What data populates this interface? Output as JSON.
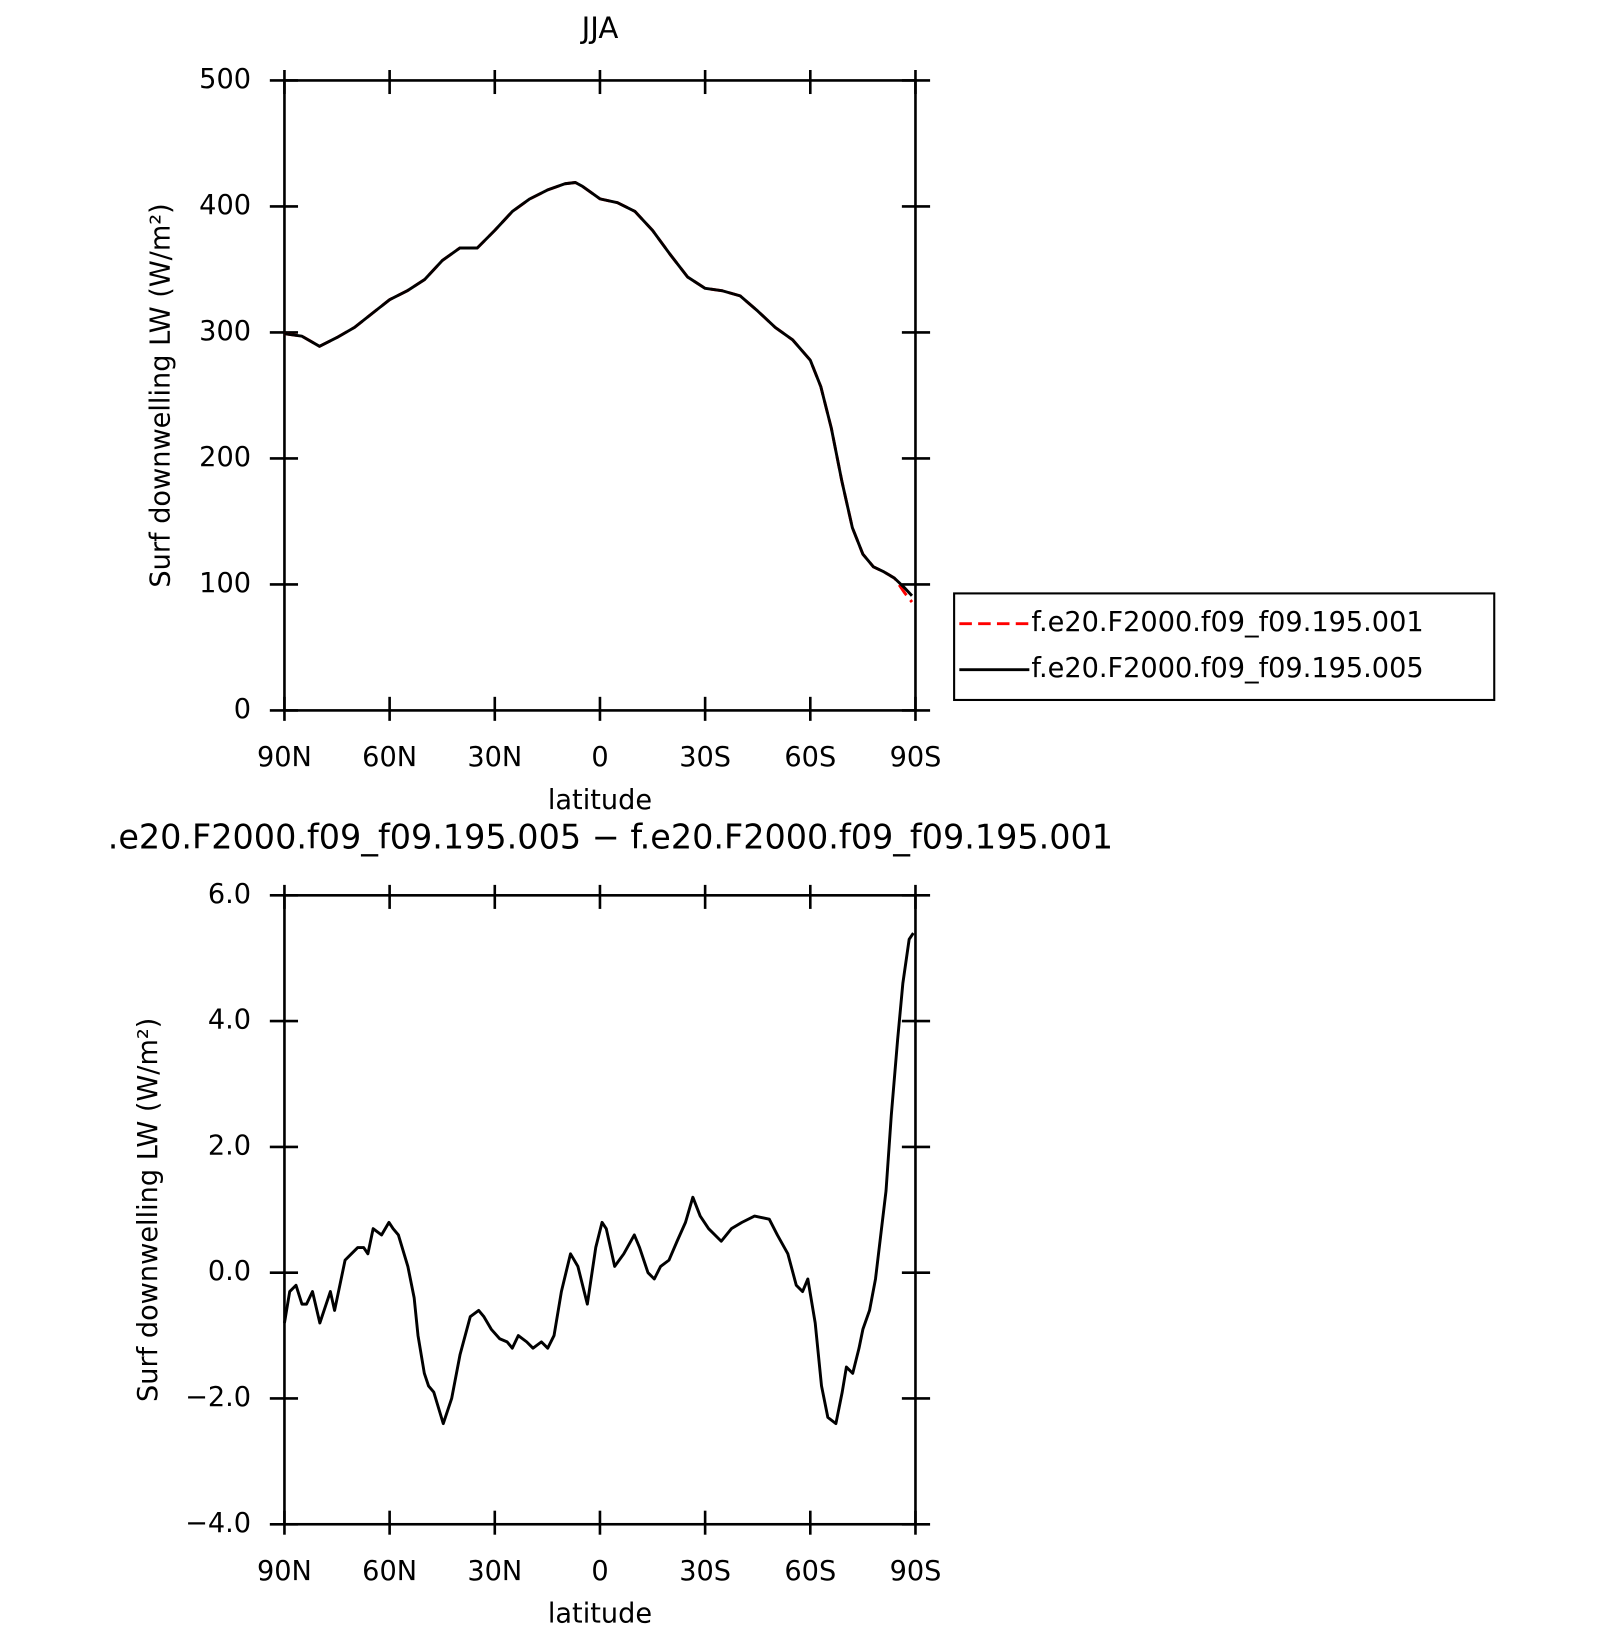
{
  "chart_data": [
    {
      "type": "line",
      "title": "JJA",
      "xlabel": "latitude",
      "ylabel": "Surf downwelling LW (W/m²)",
      "xlim": [
        90,
        -90
      ],
      "xticks": [
        {
          "value": 90,
          "label": "90N"
        },
        {
          "value": 60,
          "label": "60N"
        },
        {
          "value": 30,
          "label": "30N"
        },
        0,
        {
          "value": -30,
          "label": "30S"
        },
        {
          "value": -60,
          "label": "60S"
        },
        {
          "value": -90,
          "label": "90S"
        }
      ],
      "ylim": [
        0,
        500
      ],
      "yticks": [
        0,
        100,
        200,
        300,
        400,
        500
      ],
      "legend": "right",
      "x": [
        90,
        85,
        80,
        75,
        70,
        65,
        60,
        55,
        50,
        45,
        40,
        35,
        30,
        25,
        20,
        15,
        10,
        7,
        5,
        0,
        -5,
        -10,
        -15,
        -20,
        -25,
        -30,
        -35,
        -40,
        -45,
        -50,
        -55,
        -60,
        -63,
        -66,
        -69,
        -72,
        -75,
        -78,
        -81,
        -84,
        -87,
        -89
      ],
      "series": [
        {
          "name": "f.e20.F2000.f09_f09.195.001",
          "color": "#ff0000",
          "dash": "dashed",
          "values": [
            299,
            297,
            289,
            296,
            304,
            315,
            326,
            333,
            342,
            357,
            367,
            367,
            381,
            396,
            406,
            413,
            418,
            419,
            416,
            406,
            403,
            396,
            381,
            362,
            344,
            335,
            333,
            329,
            317,
            304,
            294,
            278,
            257,
            224,
            182,
            145,
            124,
            114,
            110,
            105,
            93,
            86
          ]
        },
        {
          "name": "f.e20.F2000.f09_f09.195.005",
          "color": "#000000",
          "dash": "solid",
          "values": [
            299,
            297,
            289,
            296,
            304,
            315,
            326,
            333,
            342,
            357,
            367,
            367,
            381,
            396,
            406,
            413,
            418,
            419,
            416,
            406,
            403,
            396,
            381,
            362,
            344,
            335,
            333,
            329,
            317,
            304,
            294,
            278,
            257,
            224,
            182,
            145,
            124,
            114,
            110,
            105,
            97,
            91
          ]
        }
      ]
    },
    {
      "type": "line",
      "title": ".e20.F2000.f09_f09.195.005 − f.e20.F2000.f09_f09.195.001",
      "xlabel": "latitude",
      "ylabel": "Surf downwelling LW (W/m²)",
      "xlim": [
        90,
        -90
      ],
      "xticks": [
        {
          "value": 90,
          "label": "90N"
        },
        {
          "value": 60,
          "label": "60N"
        },
        {
          "value": 30,
          "label": "30N"
        },
        0,
        {
          "value": -30,
          "label": "30S"
        },
        {
          "value": -60,
          "label": "60S"
        },
        {
          "value": -90,
          "label": "90S"
        }
      ],
      "ylim": [
        -4,
        6
      ],
      "yticks": [
        {
          "value": -4,
          "label": "−4.0"
        },
        {
          "value": -2,
          "label": "−2.0"
        },
        {
          "value": 0,
          "label": "0.0"
        },
        {
          "value": 2,
          "label": "2.0"
        },
        {
          "value": 4,
          "label": "4.0"
        },
        {
          "value": 6,
          "label": "6.0"
        }
      ],
      "x": [
        90,
        88.5,
        86.7,
        85,
        83.7,
        82,
        79.9,
        76.9,
        75.7,
        72.7,
        70.9,
        69.1,
        67.4,
        66.2,
        64.7,
        62.3,
        60.2,
        59,
        57.5,
        54.8,
        53,
        51.9,
        50.1,
        48.9,
        47.4,
        44.7,
        42.3,
        39.9,
        37,
        34.6,
        33.1,
        31,
        28.6,
        26.5,
        25,
        23.3,
        20.9,
        19.1,
        16.7,
        14.9,
        13.1,
        11,
        8.4,
        6.3,
        3.6,
        1.2,
        -0.6,
        -1.8,
        -4.2,
        -6.8,
        -9.8,
        -11.3,
        -13.7,
        -15.5,
        -17.3,
        -19.7,
        -22,
        -24.4,
        -26.5,
        -28.6,
        -31,
        -34.6,
        -37.5,
        -40.5,
        -44.1,
        -48.3,
        -50.6,
        -53.6,
        -56,
        -57.8,
        -59.3,
        -61.4,
        -63.2,
        -65,
        -67.3,
        -69.1,
        -70.3,
        -72.1,
        -73.9,
        -75,
        -76.9,
        -78.6,
        -80.1,
        -81.6,
        -83.1,
        -84.9,
        -86.4,
        -88.2,
        -89.4
      ],
      "series": [
        {
          "color": "#000000",
          "dash": "solid",
          "values": [
            -0.8,
            -0.3,
            -0.2,
            -0.5,
            -0.5,
            -0.3,
            -0.8,
            -0.3,
            -0.6,
            0.2,
            0.3,
            0.4,
            0.4,
            0.3,
            0.7,
            0.6,
            0.8,
            0.7,
            0.6,
            0.1,
            -0.4,
            -1,
            -1.6,
            -1.8,
            -1.9,
            -2.4,
            -2,
            -1.3,
            -0.7,
            -0.6,
            -0.7,
            -0.9,
            -1.05,
            -1.1,
            -1.2,
            -1,
            -1.1,
            -1.2,
            -1.1,
            -1.2,
            -1,
            -0.3,
            0.3,
            0.1,
            -0.5,
            0.4,
            0.8,
            0.7,
            0.1,
            0.3,
            0.6,
            0.4,
            0,
            -0.1,
            0.1,
            0.2,
            0.5,
            0.8,
            1.2,
            0.9,
            0.7,
            0.5,
            0.7,
            0.8,
            0.9,
            0.85,
            0.6,
            0.3,
            -0.2,
            -0.3,
            -0.1,
            -0.8,
            -1.8,
            -2.3,
            -2.4,
            -1.9,
            -1.5,
            -1.6,
            -1.2,
            -0.9,
            -0.6,
            -0.1,
            0.6,
            1.3,
            2.5,
            3.7,
            4.6,
            5.3,
            5.4
          ]
        }
      ]
    }
  ]
}
